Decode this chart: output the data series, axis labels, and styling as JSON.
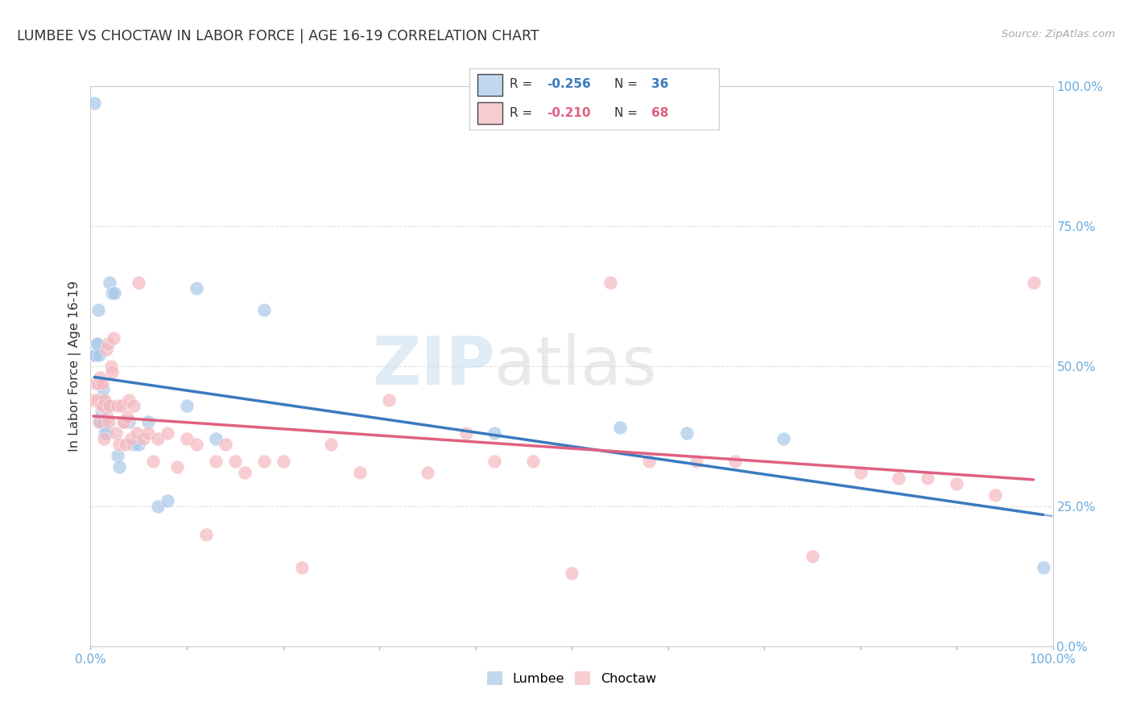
{
  "title": "LUMBEE VS CHOCTAW IN LABOR FORCE | AGE 16-19 CORRELATION CHART",
  "source": "Source: ZipAtlas.com",
  "ylabel": "In Labor Force | Age 16-19",
  "watermark_zip": "ZIP",
  "watermark_atlas": "atlas",
  "xlim": [
    0.0,
    1.0
  ],
  "ylim": [
    0.0,
    1.0
  ],
  "lumbee_color": "#a8c8e8",
  "choctaw_color": "#f4b8c0",
  "lumbee_line_color": "#3a7abf",
  "choctaw_line_color": "#e06080",
  "lumbee_R": -0.256,
  "lumbee_N": 36,
  "choctaw_R": -0.21,
  "choctaw_N": 68,
  "background_color": "#ffffff",
  "grid_color": "#e0e0e0",
  "tick_color": "#6aabdd",
  "lumbee_x": [
    0.004,
    0.004,
    0.005,
    0.006,
    0.007,
    0.008,
    0.009,
    0.01,
    0.011,
    0.012,
    0.013,
    0.014,
    0.015,
    0.016,
    0.018,
    0.02,
    0.022,
    0.025,
    0.028,
    0.03,
    0.035,
    0.04,
    0.045,
    0.05,
    0.06,
    0.07,
    0.08,
    0.1,
    0.11,
    0.13,
    0.18,
    0.42,
    0.55,
    0.62,
    0.72,
    0.99
  ],
  "lumbee_y": [
    0.97,
    0.52,
    0.52,
    0.54,
    0.54,
    0.6,
    0.52,
    0.4,
    0.42,
    0.44,
    0.46,
    0.4,
    0.38,
    0.38,
    0.43,
    0.65,
    0.63,
    0.63,
    0.34,
    0.32,
    0.4,
    0.4,
    0.36,
    0.36,
    0.4,
    0.25,
    0.26,
    0.43,
    0.64,
    0.37,
    0.6,
    0.38,
    0.39,
    0.38,
    0.37,
    0.14
  ],
  "choctaw_x": [
    0.003,
    0.005,
    0.006,
    0.007,
    0.008,
    0.009,
    0.01,
    0.011,
    0.012,
    0.013,
    0.014,
    0.015,
    0.016,
    0.017,
    0.018,
    0.019,
    0.02,
    0.021,
    0.022,
    0.024,
    0.026,
    0.028,
    0.03,
    0.032,
    0.034,
    0.035,
    0.036,
    0.038,
    0.04,
    0.042,
    0.045,
    0.048,
    0.05,
    0.055,
    0.06,
    0.065,
    0.07,
    0.08,
    0.09,
    0.1,
    0.11,
    0.12,
    0.13,
    0.14,
    0.15,
    0.16,
    0.18,
    0.2,
    0.22,
    0.25,
    0.28,
    0.31,
    0.35,
    0.39,
    0.42,
    0.46,
    0.5,
    0.54,
    0.58,
    0.63,
    0.67,
    0.75,
    0.8,
    0.84,
    0.87,
    0.9,
    0.94,
    0.98
  ],
  "choctaw_y": [
    0.44,
    0.47,
    0.47,
    0.44,
    0.47,
    0.4,
    0.48,
    0.43,
    0.47,
    0.43,
    0.37,
    0.44,
    0.53,
    0.41,
    0.54,
    0.4,
    0.43,
    0.5,
    0.49,
    0.55,
    0.38,
    0.43,
    0.36,
    0.43,
    0.4,
    0.4,
    0.36,
    0.41,
    0.44,
    0.37,
    0.43,
    0.38,
    0.65,
    0.37,
    0.38,
    0.33,
    0.37,
    0.38,
    0.32,
    0.37,
    0.36,
    0.2,
    0.33,
    0.36,
    0.33,
    0.31,
    0.33,
    0.33,
    0.14,
    0.36,
    0.31,
    0.44,
    0.31,
    0.38,
    0.33,
    0.33,
    0.13,
    0.65,
    0.33,
    0.33,
    0.33,
    0.16,
    0.31,
    0.3,
    0.3,
    0.29,
    0.27,
    0.65
  ]
}
